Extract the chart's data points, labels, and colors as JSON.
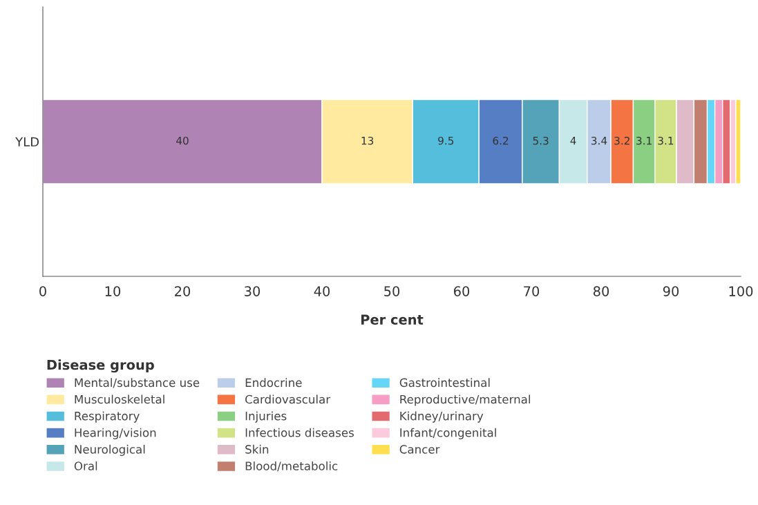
{
  "chart_data": {
    "type": "bar",
    "orientation": "horizontal",
    "stacked": true,
    "categories": [
      "YLD"
    ],
    "xlabel": "Per cent",
    "legend_title": "Disease group",
    "legend": "bottom",
    "grid": false,
    "xlim": [
      0,
      100
    ],
    "xticks": [
      0,
      10,
      20,
      30,
      40,
      50,
      60,
      70,
      80,
      90,
      100
    ],
    "series": [
      {
        "name": "Mental/substance use",
        "color": "#af83b3",
        "values": [
          40
        ],
        "value_labels": [
          "40"
        ]
      },
      {
        "name": "Musculoskeletal",
        "color": "#ffeaa0",
        "values": [
          13
        ],
        "value_labels": [
          "13"
        ]
      },
      {
        "name": "Respiratory",
        "color": "#56bedd",
        "values": [
          9.5
        ],
        "value_labels": [
          "9.5"
        ]
      },
      {
        "name": "Hearing/vision",
        "color": "#557ec4",
        "values": [
          6.2
        ],
        "value_labels": [
          "6.2"
        ]
      },
      {
        "name": "Neurological",
        "color": "#54a3b8",
        "values": [
          5.3
        ],
        "value_labels": [
          "5.3"
        ]
      },
      {
        "name": "Oral",
        "color": "#c6e8e8",
        "values": [
          4
        ],
        "value_labels": [
          "4"
        ]
      },
      {
        "name": "Endocrine",
        "color": "#bccde9",
        "values": [
          3.4
        ],
        "value_labels": [
          "3.4"
        ]
      },
      {
        "name": "Cardiovascular",
        "color": "#f47543",
        "values": [
          3.2
        ],
        "value_labels": [
          "3.2"
        ]
      },
      {
        "name": "Injuries",
        "color": "#8bcf83",
        "values": [
          3.1
        ],
        "value_labels": [
          "3.1"
        ]
      },
      {
        "name": "Infectious diseases",
        "color": "#d2e387",
        "values": [
          3.1
        ],
        "value_labels": [
          "3.1"
        ]
      },
      {
        "name": "Skin",
        "color": "#dfbac8",
        "values": [
          2.5
        ]
      },
      {
        "name": "Blood/metabolic",
        "color": "#c27f6f",
        "values": [
          1.9
        ]
      },
      {
        "name": "Gastrointestinal",
        "color": "#66d6f6",
        "values": [
          1.1
        ]
      },
      {
        "name": "Reproductive/maternal",
        "color": "#f59dc3",
        "values": [
          1.1
        ]
      },
      {
        "name": "Kidney/urinary",
        "color": "#e36b70",
        "values": [
          1.1
        ]
      },
      {
        "name": "Infant/congenital",
        "color": "#fbcadc",
        "values": [
          0.8
        ]
      },
      {
        "name": "Cancer",
        "color": "#ffdf4f",
        "values": [
          0.7
        ]
      }
    ]
  }
}
